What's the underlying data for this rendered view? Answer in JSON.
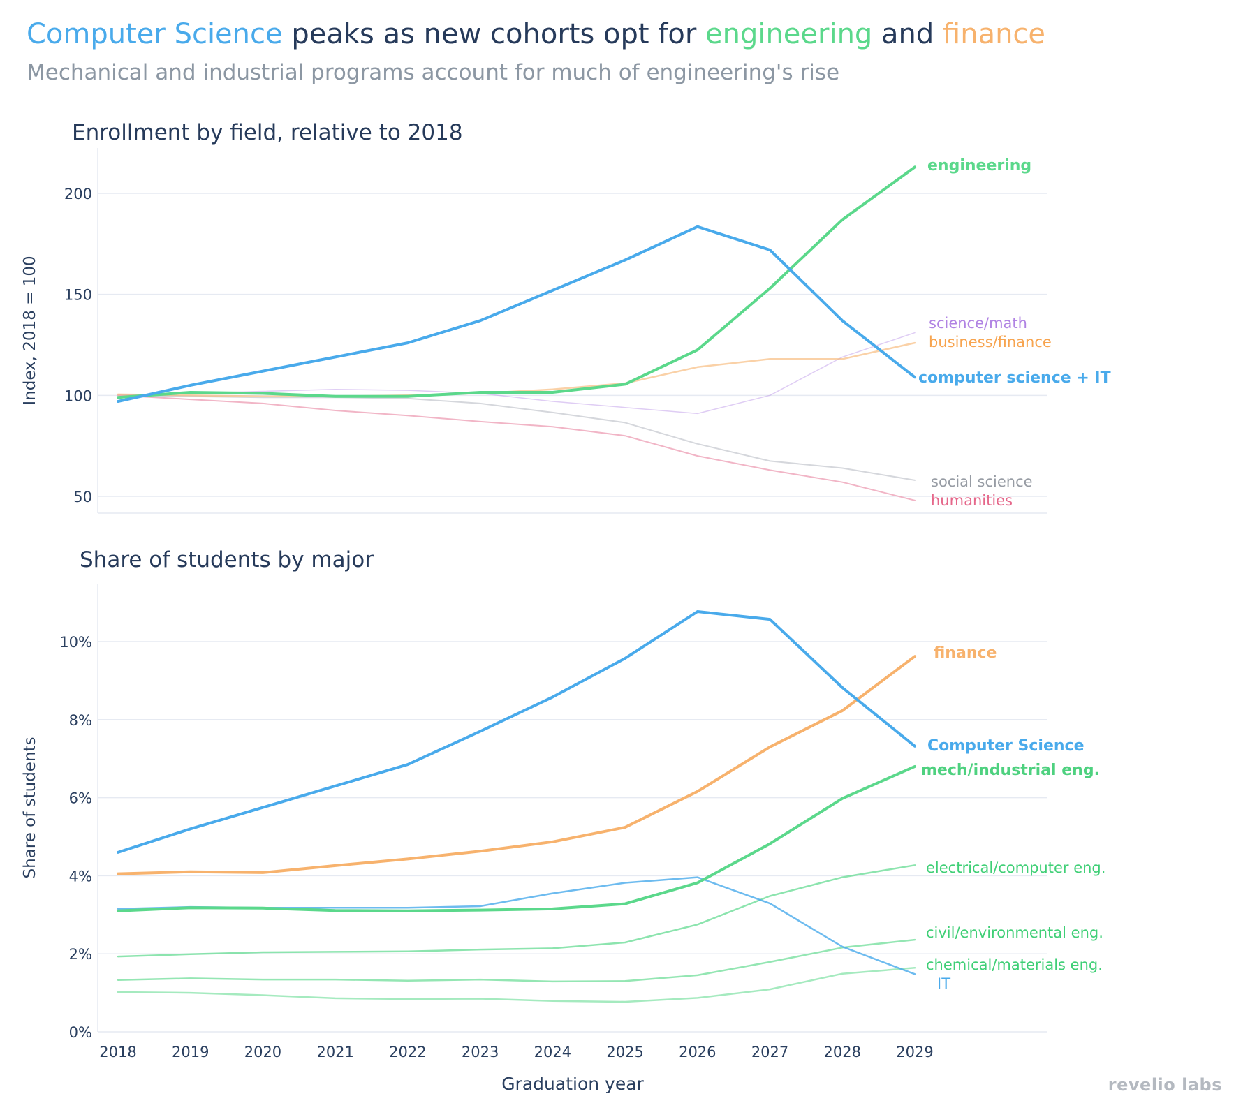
{
  "title": {
    "part1": "Computer Science",
    "part2": " peaks as new cohorts opt for ",
    "part3": "engineering",
    "part4": " and ",
    "part5": "finance"
  },
  "subtitle": "Mechanical and industrial programs account for much of engineering's rise",
  "logo": "revelio labs",
  "colors": {
    "title_text": "#263a5a",
    "cs": "#49aaeb",
    "engineering": "#5bd88b",
    "finance": "#f7b26d",
    "science_math": "#b083e3",
    "social_science": "#979ca4",
    "humanities": "#e5678a",
    "grid": "#e6eaf2"
  },
  "chart_data": [
    {
      "type": "line",
      "title": "Enrollment by field, relative to 2018",
      "ylabel": "Index, 2018 = 100",
      "xlabel": "",
      "x": [
        2018,
        2019,
        2020,
        2021,
        2022,
        2023,
        2024,
        2025,
        2026,
        2027,
        2028,
        2029
      ],
      "ylim": [
        40,
        220
      ],
      "yticks": [
        50,
        100,
        150,
        200
      ],
      "ytick_labels": [
        "50",
        "100",
        "150",
        "200"
      ],
      "grid": true,
      "series": [
        {
          "name": "science/math",
          "color": "#b083e3",
          "label_color": "#b083e3",
          "width": 1.5,
          "opacity": 0.4,
          "bold": false,
          "values": [
            100,
            101,
            102,
            103,
            102.5,
            101,
            97,
            94,
            91,
            100,
            119,
            131
          ]
        },
        {
          "name": "social science",
          "color": "#b9bdc4",
          "label_color": "#979ca4",
          "width": 2,
          "opacity": 0.6,
          "bold": false,
          "values": [
            100,
            99.5,
            99,
            99,
            98.5,
            96,
            91.5,
            86.5,
            76,
            67.5,
            64,
            58
          ]
        },
        {
          "name": "humanities",
          "color": "#eda3b8",
          "label_color": "#e5678a",
          "width": 2,
          "opacity": 0.8,
          "bold": false,
          "values": [
            100,
            98,
            96,
            92.5,
            90,
            87,
            84.5,
            80,
            70,
            63,
            57,
            48
          ]
        },
        {
          "name": "business/finance",
          "color": "#f7b26d",
          "label_color": "#f7a44f",
          "width": 2.5,
          "opacity": 0.6,
          "bold": false,
          "values": [
            100.5,
            100,
            99.5,
            99.5,
            100,
            101,
            103,
            106,
            114,
            118,
            118,
            126
          ]
        },
        {
          "name": "engineering",
          "color": "#5bd88b",
          "label_color": "#5bd88b",
          "width": 4,
          "opacity": 1,
          "bold": true,
          "values": [
            99,
            101.5,
            101,
            99.5,
            99.5,
            101.5,
            101.5,
            105.5,
            122.5,
            153,
            187,
            213
          ]
        },
        {
          "name": "computer science + IT",
          "color": "#49aaeb",
          "label_color": "#49aaeb",
          "width": 4,
          "opacity": 1,
          "bold": true,
          "values": [
            97,
            105,
            112,
            119,
            126,
            137,
            152,
            167,
            183.5,
            172,
            137,
            109
          ]
        }
      ]
    },
    {
      "type": "line",
      "title": "Share of students by major",
      "ylabel": "Share of students",
      "xlabel": "Graduation year",
      "x": [
        2018,
        2019,
        2020,
        2021,
        2022,
        2023,
        2024,
        2025,
        2026,
        2027,
        2028,
        2029
      ],
      "ylim": [
        0,
        11.5
      ],
      "yticks": [
        0,
        2,
        4,
        6,
        8,
        10
      ],
      "ytick_labels": [
        "0%",
        "2%",
        "4%",
        "6%",
        "8%",
        "10%"
      ],
      "xtick_labels": [
        "2018",
        "2019",
        "2020",
        "2021",
        "2022",
        "2023",
        "2024",
        "2025",
        "2026",
        "2027",
        "2028",
        "2029"
      ],
      "grid": true,
      "series": [
        {
          "name": "chemical/materials eng.",
          "color": "#5bd88b",
          "label_color": "#3fcf76",
          "width": 2.5,
          "opacity": 0.55,
          "bold": false,
          "values": [
            1.02,
            1.0,
            0.94,
            0.86,
            0.84,
            0.85,
            0.79,
            0.77,
            0.87,
            1.09,
            1.49,
            1.64
          ]
        },
        {
          "name": "civil/environmental eng.",
          "color": "#5bd88b",
          "label_color": "#3fcf76",
          "width": 2.5,
          "opacity": 0.65,
          "bold": false,
          "values": [
            1.33,
            1.37,
            1.34,
            1.34,
            1.31,
            1.34,
            1.29,
            1.3,
            1.45,
            1.79,
            2.16,
            2.36
          ]
        },
        {
          "name": "electrical/computer eng.",
          "color": "#5bd88b",
          "label_color": "#3fcf76",
          "width": 2.5,
          "opacity": 0.7,
          "bold": false,
          "values": [
            1.93,
            1.99,
            2.04,
            2.05,
            2.06,
            2.11,
            2.14,
            2.29,
            2.75,
            3.48,
            3.96,
            4.27
          ]
        },
        {
          "name": "IT",
          "color": "#49aaeb",
          "label_color": "#49aaeb",
          "width": 2.5,
          "opacity": 0.8,
          "bold": false,
          "values": [
            3.15,
            3.2,
            3.18,
            3.18,
            3.18,
            3.22,
            3.55,
            3.82,
            3.96,
            3.29,
            2.18,
            1.48
          ]
        },
        {
          "name": "mech/industrial eng.",
          "color": "#5bd88b",
          "label_color": "#4ed17f",
          "width": 4,
          "opacity": 1,
          "bold": true,
          "values": [
            3.1,
            3.18,
            3.17,
            3.11,
            3.1,
            3.12,
            3.15,
            3.28,
            3.82,
            4.82,
            5.98,
            6.8
          ]
        },
        {
          "name": "finance",
          "color": "#f7b26d",
          "label_color": "#f7b26d",
          "width": 4,
          "opacity": 1,
          "bold": true,
          "values": [
            4.05,
            4.1,
            4.08,
            4.26,
            4.43,
            4.63,
            4.87,
            5.24,
            6.16,
            7.3,
            8.23,
            9.62
          ]
        },
        {
          "name": "Computer Science",
          "color": "#49aaeb",
          "label_color": "#49aaeb",
          "width": 4,
          "opacity": 1,
          "bold": true,
          "values": [
            4.6,
            5.2,
            5.75,
            6.3,
            6.85,
            7.7,
            8.58,
            9.57,
            10.77,
            10.57,
            8.82,
            7.32
          ]
        }
      ]
    }
  ]
}
